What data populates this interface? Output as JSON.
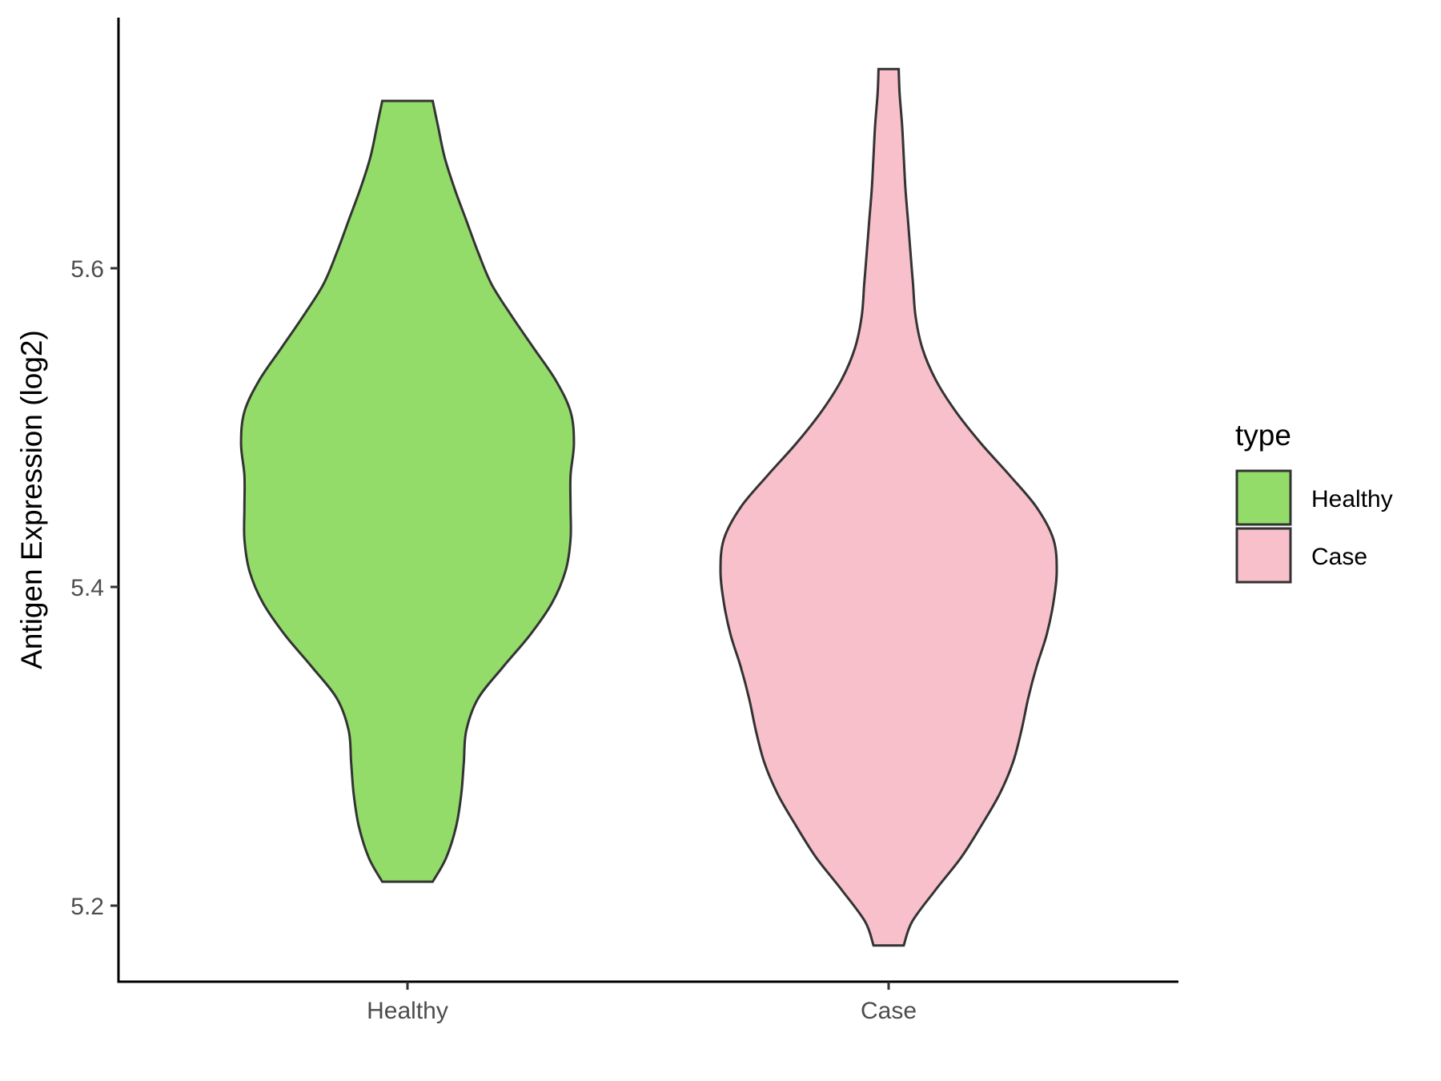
{
  "chart_data": {
    "type": "violin",
    "title": "",
    "xlabel": "",
    "ylabel": "Antigen Expression (log2)",
    "ylim": [
      5.15,
      5.755
    ],
    "yticks": [
      5.2,
      5.4,
      5.6
    ],
    "categories": [
      "Healthy",
      "Case"
    ],
    "grid": false,
    "legend": {
      "title": "type",
      "position": "right",
      "entries": [
        {
          "label": "Healthy",
          "color": "#93dc6a"
        },
        {
          "label": "Case",
          "color": "#f8c0cb"
        }
      ]
    },
    "series": [
      {
        "name": "Healthy",
        "color": "#93dc6a",
        "range": [
          5.215,
          5.705
        ],
        "density": [
          [
            5.215,
            0.15
          ],
          [
            5.23,
            0.23
          ],
          [
            5.25,
            0.29
          ],
          [
            5.27,
            0.32
          ],
          [
            5.29,
            0.335
          ],
          [
            5.31,
            0.35
          ],
          [
            5.33,
            0.42
          ],
          [
            5.35,
            0.57
          ],
          [
            5.37,
            0.73
          ],
          [
            5.39,
            0.86
          ],
          [
            5.41,
            0.94
          ],
          [
            5.43,
            0.97
          ],
          [
            5.45,
            0.97
          ],
          [
            5.47,
            0.97
          ],
          [
            5.49,
            0.99
          ],
          [
            5.51,
            0.97
          ],
          [
            5.53,
            0.88
          ],
          [
            5.55,
            0.75
          ],
          [
            5.57,
            0.62
          ],
          [
            5.59,
            0.5
          ],
          [
            5.61,
            0.42
          ],
          [
            5.63,
            0.35
          ],
          [
            5.65,
            0.28
          ],
          [
            5.67,
            0.22
          ],
          [
            5.69,
            0.18
          ],
          [
            5.705,
            0.15
          ]
        ]
      },
      {
        "name": "Case",
        "color": "#f8c0cb",
        "range": [
          5.175,
          5.725
        ],
        "density": [
          [
            5.175,
            0.09
          ],
          [
            5.19,
            0.14
          ],
          [
            5.21,
            0.28
          ],
          [
            5.23,
            0.43
          ],
          [
            5.25,
            0.55
          ],
          [
            5.27,
            0.66
          ],
          [
            5.29,
            0.74
          ],
          [
            5.31,
            0.79
          ],
          [
            5.33,
            0.83
          ],
          [
            5.35,
            0.88
          ],
          [
            5.37,
            0.94
          ],
          [
            5.39,
            0.98
          ],
          [
            5.41,
            1.0
          ],
          [
            5.43,
            0.98
          ],
          [
            5.45,
            0.88
          ],
          [
            5.47,
            0.72
          ],
          [
            5.49,
            0.55
          ],
          [
            5.51,
            0.4
          ],
          [
            5.53,
            0.28
          ],
          [
            5.55,
            0.2
          ],
          [
            5.57,
            0.16
          ],
          [
            5.59,
            0.145
          ],
          [
            5.61,
            0.13
          ],
          [
            5.63,
            0.115
          ],
          [
            5.65,
            0.1
          ],
          [
            5.67,
            0.09
          ],
          [
            5.69,
            0.08
          ],
          [
            5.71,
            0.065
          ],
          [
            5.725,
            0.06
          ]
        ]
      }
    ]
  }
}
